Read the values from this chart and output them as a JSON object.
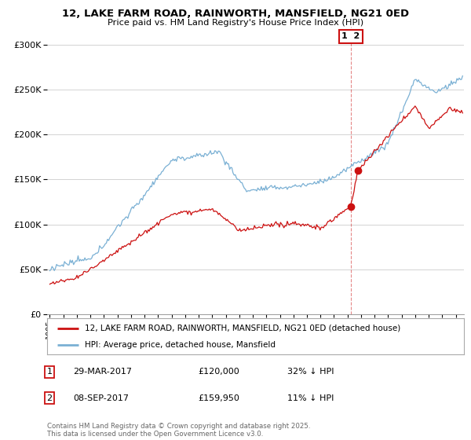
{
  "title_line1": "12, LAKE FARM ROAD, RAINWORTH, MANSFIELD, NG21 0ED",
  "title_line2": "Price paid vs. HM Land Registry's House Price Index (HPI)",
  "ylim": [
    0,
    320000
  ],
  "yticks": [
    0,
    50000,
    100000,
    150000,
    200000,
    250000,
    300000
  ],
  "hpi_color": "#7ab0d4",
  "price_color": "#cc1111",
  "transaction1": {
    "date": "29-MAR-2017",
    "price": 120000,
    "label": "32% ↓ HPI",
    "num": "1"
  },
  "transaction2": {
    "date": "08-SEP-2017",
    "price": 159950,
    "label": "11% ↓ HPI",
    "num": "2"
  },
  "legend_label1": "12, LAKE FARM ROAD, RAINWORTH, MANSFIELD, NG21 0ED (detached house)",
  "legend_label2": "HPI: Average price, detached house, Mansfield",
  "footer": "Contains HM Land Registry data © Crown copyright and database right 2025.\nThis data is licensed under the Open Government Licence v3.0.",
  "background_color": "#ffffff",
  "grid_color": "#cccccc"
}
